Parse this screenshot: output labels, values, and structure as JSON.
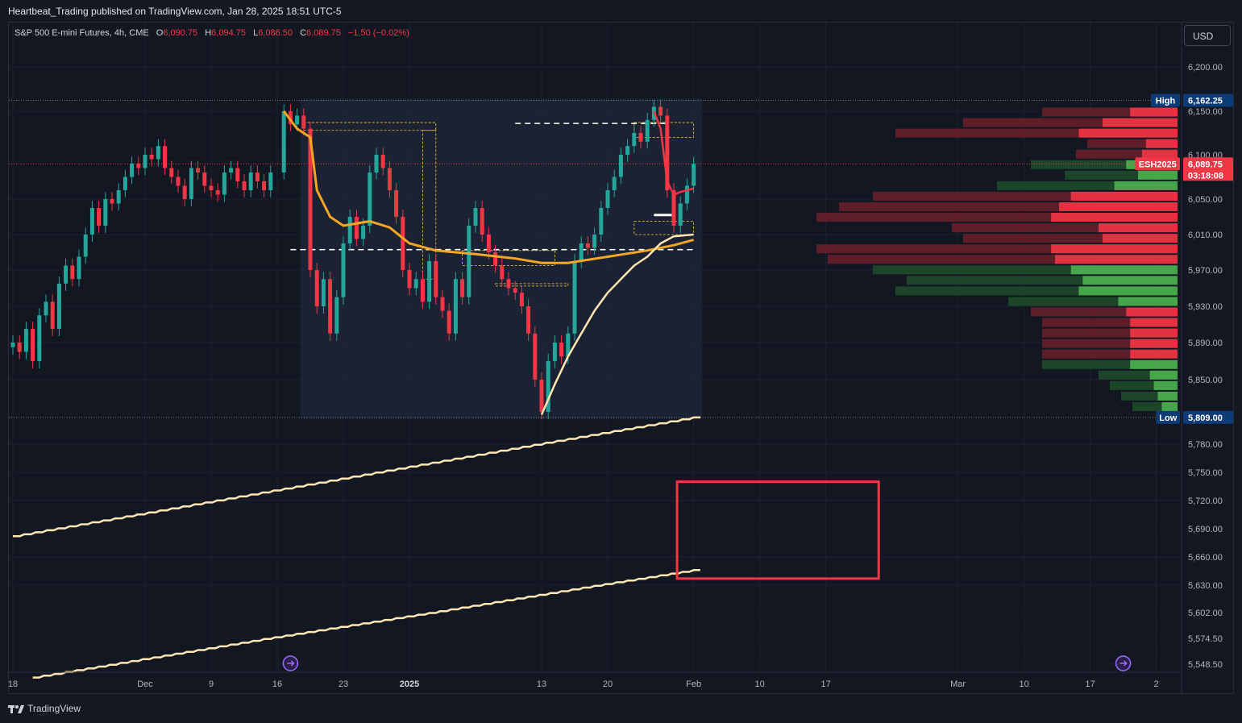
{
  "publisher_line": "Heartbeat_Trading published on TradingView.com, Jan 28, 2025 18:51 UTC-5",
  "legend": {
    "symbol": "S&P 500 E-mini Futures, 4h, CME",
    "open_label": "O",
    "open": "6,090.75",
    "high_label": "H",
    "high": "6,094.75",
    "low_label": "L",
    "low": "6,086.50",
    "close_label": "C",
    "close": "6,089.75",
    "change": "−1.50 (−0.02%)"
  },
  "currency_button": "USD",
  "footer_brand": "TradingView",
  "colors": {
    "background": "#131722",
    "up": "#26a69a",
    "down": "#f23645",
    "vwap_orange": "#f5a623",
    "trend_cream": "#ffe6b3",
    "highlight_box": "#f23645"
  },
  "chart_data": {
    "type": "candlestick",
    "symbol": "ESH2025",
    "timeframe": "4h",
    "ylim": [
      5535,
      6220
    ],
    "price_ticks": [
      "6,200.00",
      "6,150.00",
      "6,100.00",
      "6,050.00",
      "6,010.00",
      "5,970.00",
      "5,930.00",
      "5,890.00",
      "5,850.00",
      "5,780.00",
      "5,750.00",
      "5,720.00",
      "5,690.00",
      "5,660.00",
      "5,630.00",
      "5,602.00",
      "5,574.50",
      "5,548.50"
    ],
    "price_tick_values": [
      6200,
      6150,
      6100,
      6050,
      6010,
      5970,
      5930,
      5890,
      5850,
      5780,
      5750,
      5720,
      5690,
      5660,
      5630,
      5602,
      5574.5,
      5548.5
    ],
    "date_labels": [
      "18",
      "Dec",
      "9",
      "16",
      "23",
      "2025",
      "13",
      "20",
      "Feb",
      "10",
      "17",
      "Mar",
      "10",
      "17",
      "2"
    ],
    "date_label_index": [
      0,
      20,
      30,
      40,
      50,
      60,
      80,
      90,
      103,
      113,
      123,
      143,
      153,
      163,
      173
    ],
    "range_high": {
      "label": "High",
      "value": "6,162.25",
      "y": 6162.25
    },
    "range_low": {
      "label": "Low",
      "value": "5,809.00",
      "y": 5809
    },
    "last_price": {
      "symbol": "ESH2025",
      "value": "6,089.75",
      "countdown": "03:18:08",
      "y": 6089.75
    },
    "candles": [
      {
        "x": 0,
        "c": 5890
      },
      {
        "x": 1,
        "c": 5880
      },
      {
        "x": 2,
        "c": 5905
      },
      {
        "x": 3,
        "c": 5870
      },
      {
        "x": 4,
        "c": 5920
      },
      {
        "x": 5,
        "c": 5935
      },
      {
        "x": 6,
        "c": 5905
      },
      {
        "x": 7,
        "c": 5955
      },
      {
        "x": 8,
        "c": 5975
      },
      {
        "x": 9,
        "c": 5960
      },
      {
        "x": 10,
        "c": 5985
      },
      {
        "x": 11,
        "c": 6010
      },
      {
        "x": 12,
        "c": 6040
      },
      {
        "x": 13,
        "c": 6020
      },
      {
        "x": 14,
        "c": 6050
      },
      {
        "x": 15,
        "c": 6045
      },
      {
        "x": 16,
        "c": 6060
      },
      {
        "x": 17,
        "c": 6075
      },
      {
        "x": 18,
        "c": 6090
      },
      {
        "x": 19,
        "c": 6085
      },
      {
        "x": 20,
        "c": 6100
      },
      {
        "x": 21,
        "c": 6095
      },
      {
        "x": 22,
        "c": 6110
      },
      {
        "x": 23,
        "c": 6085
      },
      {
        "x": 24,
        "c": 6075
      },
      {
        "x": 25,
        "c": 6065
      },
      {
        "x": 26,
        "c": 6050
      },
      {
        "x": 27,
        "c": 6085
      },
      {
        "x": 28,
        "c": 6080
      },
      {
        "x": 29,
        "c": 6065
      },
      {
        "x": 30,
        "c": 6060
      },
      {
        "x": 31,
        "c": 6055
      },
      {
        "x": 32,
        "c": 6080
      },
      {
        "x": 33,
        "c": 6085
      },
      {
        "x": 34,
        "c": 6070
      },
      {
        "x": 35,
        "c": 6060
      },
      {
        "x": 36,
        "c": 6080
      },
      {
        "x": 37,
        "c": 6070
      },
      {
        "x": 38,
        "c": 6060
      },
      {
        "x": 39,
        "c": 6080
      },
      {
        "x": 41,
        "c": 6150
      },
      {
        "x": 42,
        "c": 6135
      },
      {
        "x": 43,
        "c": 6145
      },
      {
        "x": 44,
        "c": 6130
      },
      {
        "x": 45,
        "c": 5970
      },
      {
        "x": 46,
        "c": 5930
      },
      {
        "x": 47,
        "c": 5960
      },
      {
        "x": 48,
        "c": 5900
      },
      {
        "x": 49,
        "c": 5940
      },
      {
        "x": 50,
        "c": 6000
      },
      {
        "x": 51,
        "c": 6030
      },
      {
        "x": 52,
        "c": 6005
      },
      {
        "x": 53,
        "c": 6020
      },
      {
        "x": 54,
        "c": 6080
      },
      {
        "x": 55,
        "c": 6100
      },
      {
        "x": 56,
        "c": 6085
      },
      {
        "x": 57,
        "c": 6060
      },
      {
        "x": 58,
        "c": 6030
      },
      {
        "x": 59,
        "c": 5970
      },
      {
        "x": 60,
        "c": 5950
      },
      {
        "x": 61,
        "c": 5960
      },
      {
        "x": 62,
        "c": 5935
      },
      {
        "x": 63,
        "c": 5980
      },
      {
        "x": 64,
        "c": 5940
      },
      {
        "x": 65,
        "c": 5925
      },
      {
        "x": 66,
        "c": 5900
      },
      {
        "x": 67,
        "c": 5960
      },
      {
        "x": 68,
        "c": 5940
      },
      {
        "x": 69,
        "c": 6020
      },
      {
        "x": 70,
        "c": 6040
      },
      {
        "x": 71,
        "c": 6010
      },
      {
        "x": 72,
        "c": 5990
      },
      {
        "x": 73,
        "c": 5975
      },
      {
        "x": 74,
        "c": 5960
      },
      {
        "x": 75,
        "c": 5950
      },
      {
        "x": 76,
        "c": 5945
      },
      {
        "x": 77,
        "c": 5930
      },
      {
        "x": 78,
        "c": 5900
      },
      {
        "x": 79,
        "c": 5850
      },
      {
        "x": 80,
        "c": 5815
      },
      {
        "x": 81,
        "c": 5870
      },
      {
        "x": 82,
        "c": 5890
      },
      {
        "x": 83,
        "c": 5875
      },
      {
        "x": 84,
        "c": 5900
      },
      {
        "x": 85,
        "c": 5980
      },
      {
        "x": 86,
        "c": 6000
      },
      {
        "x": 87,
        "c": 5995
      },
      {
        "x": 88,
        "c": 6010
      },
      {
        "x": 89,
        "c": 6040
      },
      {
        "x": 90,
        "c": 6060
      },
      {
        "x": 91,
        "c": 6075
      },
      {
        "x": 92,
        "c": 6100
      },
      {
        "x": 93,
        "c": 6110
      },
      {
        "x": 94,
        "c": 6125
      },
      {
        "x": 95,
        "c": 6115
      },
      {
        "x": 96,
        "c": 6140
      },
      {
        "x": 97,
        "c": 6155
      },
      {
        "x": 98,
        "c": 6145
      },
      {
        "x": 99,
        "c": 6060
      },
      {
        "x": 100,
        "c": 6020
      },
      {
        "x": 101,
        "c": 6045
      },
      {
        "x": 102,
        "c": 6065
      },
      {
        "x": 103,
        "c": 6089.75
      }
    ]
  },
  "annotations": {
    "highlight_box_y": [
      5637,
      5740
    ]
  }
}
